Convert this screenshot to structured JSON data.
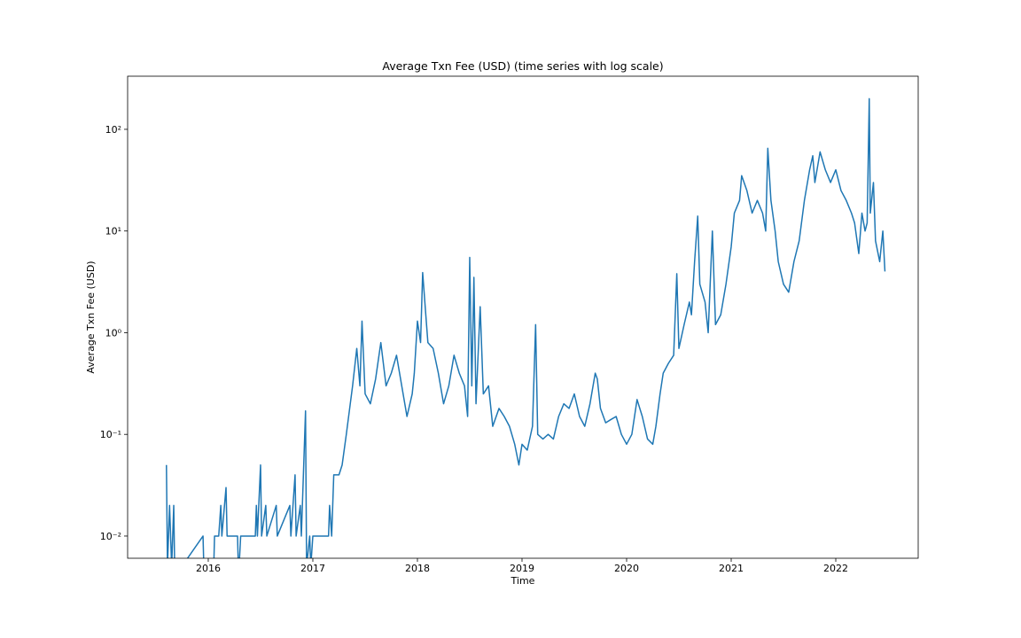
{
  "chart_data": {
    "type": "line",
    "title": "Average Txn Fee (USD) (time series with log scale)",
    "x_label": "Time",
    "y_label": "Average Txn Fee (USD)",
    "log_y": true,
    "grid": false,
    "xlim": [
      2015.229,
      2022.788
    ],
    "xticks": [
      2016,
      2017,
      2018,
      2019,
      2020,
      2021,
      2022
    ],
    "ylim": [
      0.00605,
      333
    ],
    "yticks": [
      {
        "value": 0.01,
        "label": "10⁻²"
      },
      {
        "value": 0.1,
        "label": "10⁻¹"
      },
      {
        "value": 1,
        "label": "10⁰"
      },
      {
        "value": 10,
        "label": "10¹"
      },
      {
        "value": 100,
        "label": "10²"
      }
    ],
    "series": [
      {
        "color": "#1f77b4",
        "x": [
          2015.6,
          2015.61,
          2015.63,
          2015.65,
          2015.67,
          2015.68,
          2015.95,
          2015.96,
          2016.05,
          2016.06,
          2016.1,
          2016.12,
          2016.13,
          2016.17,
          2016.18,
          2016.28,
          2016.29,
          2016.31,
          2016.45,
          2016.46,
          2016.47,
          2016.5,
          2016.51,
          2016.55,
          2016.56,
          2016.65,
          2016.66,
          2016.78,
          2016.79,
          2016.83,
          2016.84,
          2016.88,
          2016.89,
          2016.93,
          2016.94,
          2016.97,
          2016.98,
          2017.0,
          2017.15,
          2017.16,
          2017.18,
          2017.2,
          2017.25,
          2017.28,
          2017.32,
          2017.38,
          2017.42,
          2017.45,
          2017.47,
          2017.5,
          2017.55,
          2017.6,
          2017.65,
          2017.7,
          2017.75,
          2017.8,
          2017.85,
          2017.9,
          2017.95,
          2017.97,
          2018.0,
          2018.03,
          2018.05,
          2018.08,
          2018.1,
          2018.15,
          2018.2,
          2018.25,
          2018.3,
          2018.35,
          2018.4,
          2018.45,
          2018.48,
          2018.5,
          2018.52,
          2018.54,
          2018.56,
          2018.6,
          2018.63,
          2018.68,
          2018.72,
          2018.78,
          2018.83,
          2018.88,
          2018.93,
          2018.97,
          2019.0,
          2019.05,
          2019.1,
          2019.13,
          2019.15,
          2019.2,
          2019.25,
          2019.3,
          2019.35,
          2019.4,
          2019.45,
          2019.5,
          2019.55,
          2019.6,
          2019.65,
          2019.7,
          2019.72,
          2019.75,
          2019.8,
          2019.85,
          2019.9,
          2019.95,
          2020.0,
          2020.05,
          2020.1,
          2020.15,
          2020.2,
          2020.25,
          2020.28,
          2020.32,
          2020.35,
          2020.4,
          2020.45,
          2020.48,
          2020.5,
          2020.55,
          2020.6,
          2020.62,
          2020.65,
          2020.68,
          2020.7,
          2020.75,
          2020.78,
          2020.82,
          2020.85,
          2020.9,
          2020.95,
          2021.0,
          2021.03,
          2021.08,
          2021.1,
          2021.15,
          2021.2,
          2021.25,
          2021.3,
          2021.33,
          2021.35,
          2021.38,
          2021.42,
          2021.45,
          2021.5,
          2021.55,
          2021.6,
          2021.65,
          2021.7,
          2021.75,
          2021.78,
          2021.8,
          2021.85,
          2021.9,
          2021.95,
          2022.0,
          2022.05,
          2022.1,
          2022.15,
          2022.18,
          2022.22,
          2022.25,
          2022.28,
          2022.3,
          2022.32,
          2022.33,
          2022.36,
          2022.38,
          2022.42,
          2022.45,
          2022.47
        ],
        "values": [
          0.05,
          0.005,
          0.02,
          0.005,
          0.02,
          0.004,
          0.01,
          0.004,
          0.004,
          0.01,
          0.01,
          0.02,
          0.01,
          0.03,
          0.01,
          0.01,
          0.004,
          0.01,
          0.01,
          0.02,
          0.01,
          0.05,
          0.01,
          0.02,
          0.01,
          0.02,
          0.01,
          0.02,
          0.01,
          0.04,
          0.01,
          0.02,
          0.01,
          0.17,
          0.005,
          0.01,
          0.005,
          0.01,
          0.01,
          0.02,
          0.01,
          0.04,
          0.04,
          0.05,
          0.1,
          0.3,
          0.7,
          0.3,
          1.3,
          0.25,
          0.2,
          0.35,
          0.8,
          0.3,
          0.4,
          0.6,
          0.3,
          0.15,
          0.25,
          0.4,
          1.3,
          0.8,
          3.9,
          1.5,
          0.8,
          0.7,
          0.4,
          0.2,
          0.3,
          0.6,
          0.4,
          0.3,
          0.15,
          5.5,
          0.3,
          3.5,
          0.2,
          1.8,
          0.25,
          0.3,
          0.12,
          0.18,
          0.15,
          0.12,
          0.08,
          0.05,
          0.08,
          0.07,
          0.12,
          1.2,
          0.1,
          0.09,
          0.1,
          0.09,
          0.15,
          0.2,
          0.18,
          0.25,
          0.15,
          0.12,
          0.2,
          0.4,
          0.35,
          0.18,
          0.13,
          0.14,
          0.15,
          0.1,
          0.08,
          0.1,
          0.22,
          0.15,
          0.09,
          0.08,
          0.12,
          0.25,
          0.4,
          0.5,
          0.6,
          3.8,
          0.7,
          1.2,
          2,
          1.5,
          5,
          14,
          3,
          2,
          1,
          10,
          1.2,
          1.5,
          3,
          7,
          15,
          20,
          35,
          25,
          15,
          20,
          15,
          10,
          65,
          20,
          10,
          5,
          3,
          2.5,
          5,
          8,
          20,
          40,
          55,
          30,
          60,
          40,
          30,
          40,
          25,
          20,
          15,
          12,
          6,
          15,
          10,
          12,
          200,
          15,
          30,
          8,
          5,
          10,
          4
        ]
      }
    ]
  }
}
